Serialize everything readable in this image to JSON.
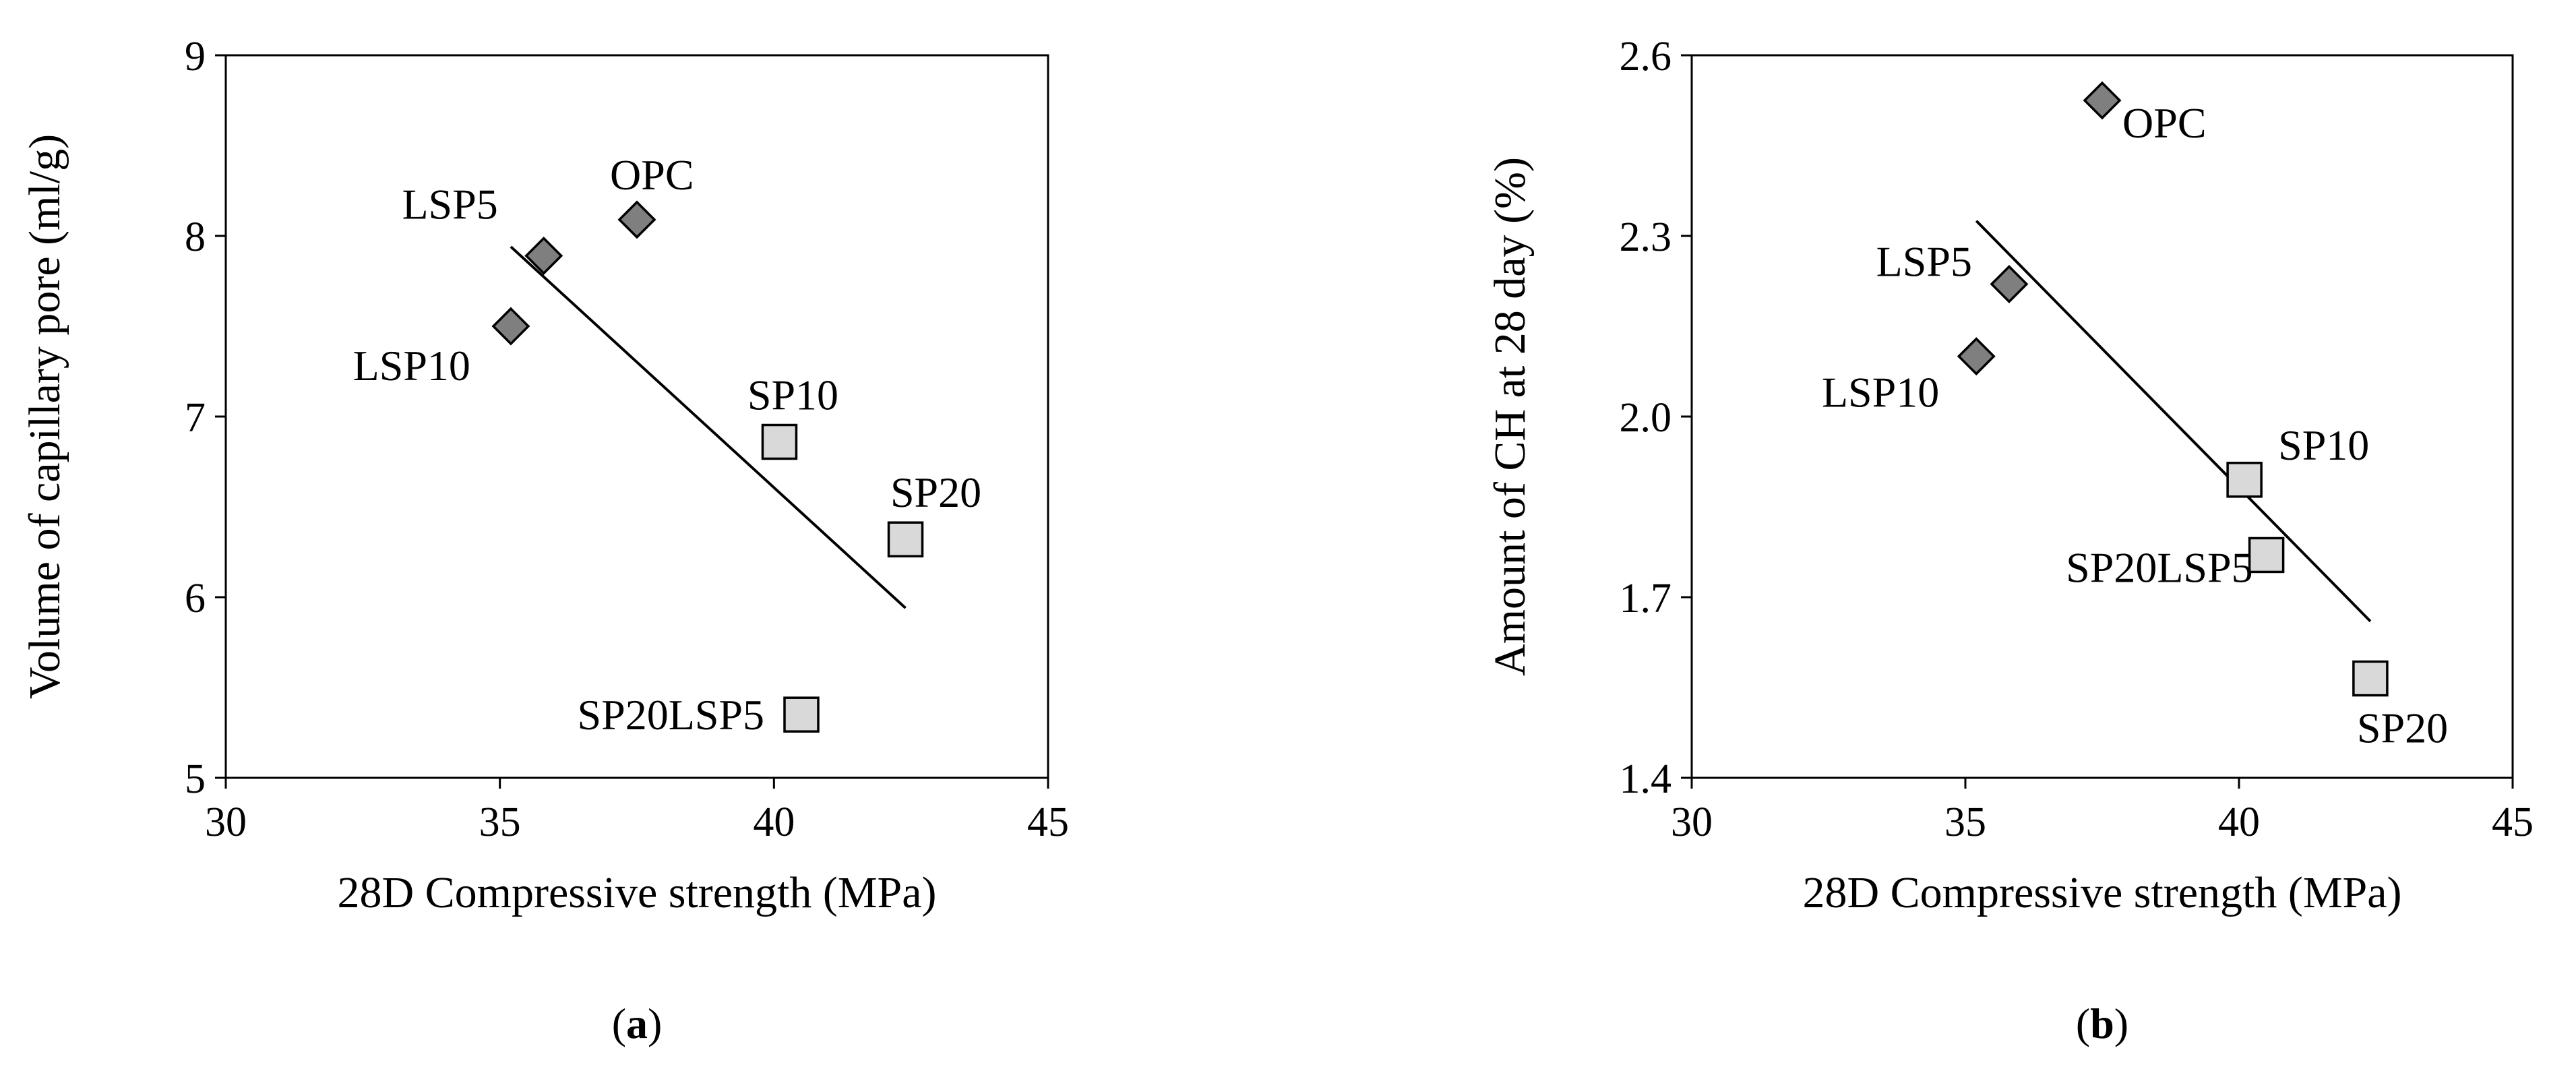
{
  "chart_data": [
    {
      "type": "scatter",
      "panel_label": "a",
      "xlabel": "28D Compressive strength (MPa)",
      "ylabel": "Volume of capillary pore (ml/g)",
      "xlim": [
        30,
        45
      ],
      "ylim": [
        5,
        9
      ],
      "xticks": [
        30,
        35,
        40,
        45
      ],
      "yticks": [
        5,
        6,
        7,
        8,
        9
      ],
      "grid": false,
      "points": [
        {
          "label": "OPC",
          "x": 37.5,
          "y": 8.09,
          "marker": "diamond",
          "color": "#7f7f7f"
        },
        {
          "label": "LSP5",
          "x": 35.8,
          "y": 7.89,
          "marker": "diamond",
          "color": "#7f7f7f"
        },
        {
          "label": "LSP10",
          "x": 35.2,
          "y": 7.5,
          "marker": "diamond",
          "color": "#7f7f7f"
        },
        {
          "label": "SP10",
          "x": 40.1,
          "y": 6.86,
          "marker": "square",
          "color": "#d9d9d9"
        },
        {
          "label": "SP20",
          "x": 42.4,
          "y": 6.32,
          "marker": "square",
          "color": "#d9d9d9"
        },
        {
          "label": "SP20LSP5",
          "x": 40.5,
          "y": 5.35,
          "marker": "square",
          "color": "#d9d9d9"
        }
      ],
      "trendline": {
        "x": [
          35.2,
          42.4
        ],
        "y": [
          7.94,
          5.94
        ]
      }
    },
    {
      "type": "scatter",
      "panel_label": "b",
      "xlabel": "28D Compressive strength (MPa)",
      "ylabel": "Amount of CH at 28 day (%)",
      "xlim": [
        30,
        45
      ],
      "ylim": [
        1.4,
        2.6
      ],
      "xticks": [
        30,
        35,
        40,
        45
      ],
      "yticks": [
        1.4,
        1.7,
        2.0,
        2.3,
        2.6
      ],
      "grid": false,
      "points": [
        {
          "label": "OPC",
          "x": 37.5,
          "y": 2.525,
          "marker": "diamond",
          "color": "#7f7f7f"
        },
        {
          "label": "LSP5",
          "x": 35.8,
          "y": 2.22,
          "marker": "diamond",
          "color": "#7f7f7f"
        },
        {
          "label": "LSP10",
          "x": 35.2,
          "y": 2.1,
          "marker": "diamond",
          "color": "#7f7f7f"
        },
        {
          "label": "SP10",
          "x": 40.1,
          "y": 1.895,
          "marker": "square",
          "color": "#d9d9d9"
        },
        {
          "label": "SP20LSP5",
          "x": 40.5,
          "y": 1.77,
          "marker": "square",
          "color": "#d9d9d9"
        },
        {
          "label": "SP20",
          "x": 42.4,
          "y": 1.565,
          "marker": "square",
          "color": "#d9d9d9"
        }
      ],
      "trendline": {
        "x": [
          35.2,
          42.4
        ],
        "y": [
          2.325,
          1.66
        ]
      }
    }
  ]
}
